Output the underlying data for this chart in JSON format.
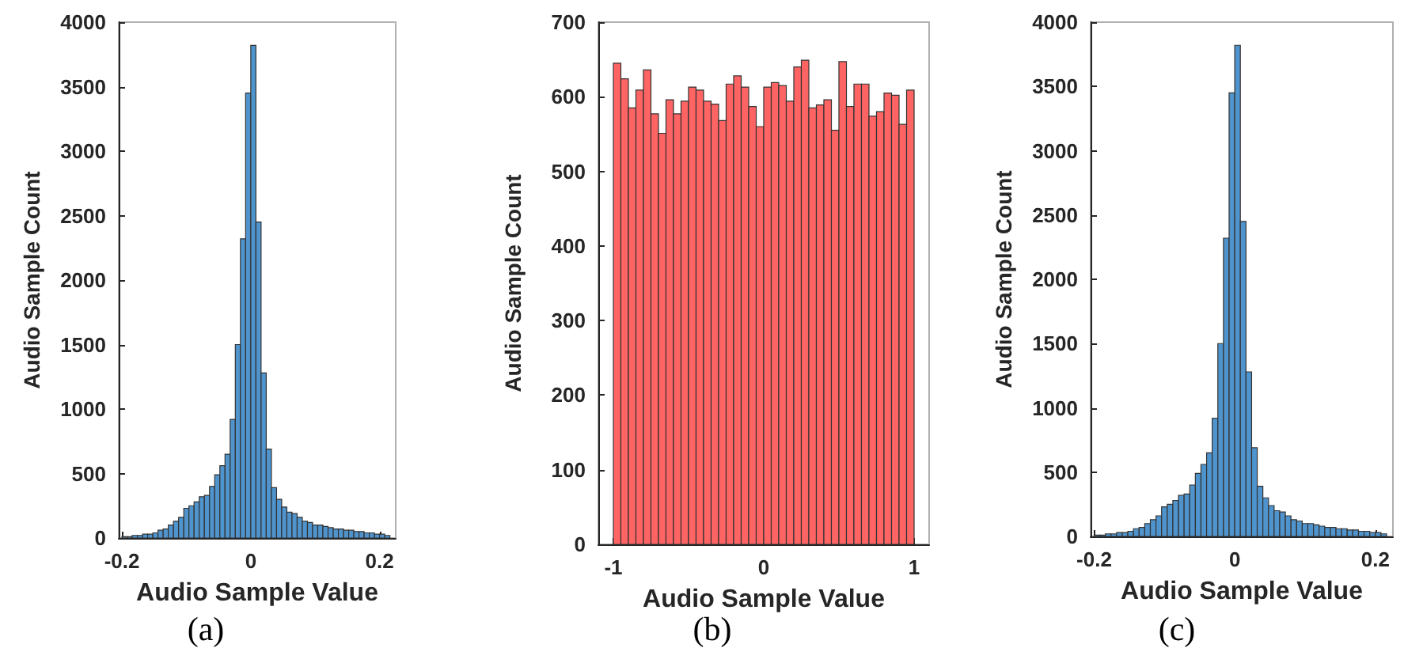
{
  "chart_data": [
    {
      "type": "histogram",
      "title": "(a)",
      "xlabel": "Audio Sample Value",
      "ylabel": "Audio Sample Count",
      "color": "#4f94cd",
      "grid": false,
      "bins": [
        -0.2,
        -0.192,
        -0.184,
        -0.176,
        -0.168,
        -0.16,
        -0.152,
        -0.144,
        -0.136,
        -0.128,
        -0.12,
        -0.112,
        -0.104,
        -0.096,
        -0.088,
        -0.08,
        -0.072,
        -0.064,
        -0.056,
        -0.048,
        -0.04,
        -0.032,
        -0.024,
        -0.016,
        -0.008,
        0,
        0.008,
        0.016,
        0.024,
        0.032,
        0.04,
        0.048,
        0.056,
        0.064,
        0.072,
        0.08,
        0.088,
        0.096,
        0.104,
        0.112,
        0.12,
        0.128,
        0.136,
        0.144,
        0.152,
        0.16,
        0.168,
        0.176,
        0.184,
        0.192,
        0.2,
        0.208,
        0.216
      ],
      "values": [
        10,
        10,
        20,
        20,
        30,
        30,
        40,
        60,
        70,
        100,
        130,
        160,
        230,
        250,
        280,
        320,
        330,
        400,
        490,
        560,
        650,
        920,
        1500,
        2320,
        3450,
        3820,
        2450,
        1280,
        690,
        390,
        300,
        240,
        200,
        190,
        160,
        130,
        120,
        100,
        100,
        90,
        80,
        70,
        70,
        60,
        60,
        50,
        50,
        40,
        40,
        30,
        30,
        20
      ],
      "xlim": [
        -0.205,
        0.225
      ],
      "xticks": [
        -0.2,
        0,
        0.2
      ],
      "ylim": [
        0,
        4000
      ],
      "yticks": [
        0,
        500,
        1000,
        1500,
        2000,
        2500,
        3000,
        3500,
        4000
      ]
    },
    {
      "type": "histogram",
      "title": "(b)",
      "xlabel": "Audio Sample Value",
      "ylabel": "Audio Sample Count",
      "color": "#ff6464",
      "grid": false,
      "bins": [
        -1,
        -0.95,
        -0.9,
        -0.85,
        -0.8,
        -0.75,
        -0.7,
        -0.65,
        -0.6,
        -0.55,
        -0.5,
        -0.45,
        -0.4,
        -0.35,
        -0.3,
        -0.25,
        -0.2,
        -0.15,
        -0.1,
        -0.05,
        0,
        0.05,
        0.1,
        0.15,
        0.2,
        0.25,
        0.3,
        0.35,
        0.4,
        0.45,
        0.5,
        0.55,
        0.6,
        0.65,
        0.7,
        0.75,
        0.8,
        0.85,
        0.9,
        0.95,
        1
      ],
      "values": [
        645,
        624,
        585,
        609,
        636,
        577,
        551,
        596,
        577,
        594,
        613,
        609,
        594,
        590,
        568,
        617,
        628,
        613,
        587,
        560,
        613,
        619,
        615,
        594,
        640,
        649,
        585,
        589,
        596,
        555,
        647,
        587,
        617,
        617,
        574,
        580,
        605,
        602,
        563,
        609
      ],
      "xlim": [
        -1.1,
        1.1
      ],
      "xticks": [
        -1,
        0,
        1
      ],
      "ylim": [
        0,
        700
      ],
      "yticks": [
        0,
        100,
        200,
        300,
        400,
        500,
        600,
        700
      ]
    },
    {
      "type": "histogram",
      "title": "(c)",
      "xlabel": "Audio Sample Value",
      "ylabel": "Audio Sample Count",
      "color": "#4f94cd",
      "grid": false,
      "bins": [
        -0.2,
        -0.192,
        -0.184,
        -0.176,
        -0.168,
        -0.16,
        -0.152,
        -0.144,
        -0.136,
        -0.128,
        -0.12,
        -0.112,
        -0.104,
        -0.096,
        -0.088,
        -0.08,
        -0.072,
        -0.064,
        -0.056,
        -0.048,
        -0.04,
        -0.032,
        -0.024,
        -0.016,
        -0.008,
        0,
        0.008,
        0.016,
        0.024,
        0.032,
        0.04,
        0.048,
        0.056,
        0.064,
        0.072,
        0.08,
        0.088,
        0.096,
        0.104,
        0.112,
        0.12,
        0.128,
        0.136,
        0.144,
        0.152,
        0.16,
        0.168,
        0.176,
        0.184,
        0.192,
        0.2,
        0.208,
        0.216
      ],
      "values": [
        10,
        10,
        20,
        20,
        30,
        30,
        40,
        60,
        70,
        100,
        130,
        160,
        230,
        250,
        280,
        320,
        330,
        400,
        490,
        560,
        650,
        920,
        1500,
        2320,
        3450,
        3820,
        2450,
        1280,
        690,
        390,
        300,
        240,
        200,
        190,
        160,
        130,
        120,
        100,
        100,
        90,
        80,
        70,
        70,
        60,
        60,
        50,
        50,
        40,
        40,
        30,
        30,
        20
      ],
      "xlim": [
        -0.205,
        0.225
      ],
      "xticks": [
        -0.2,
        0,
        0.2
      ],
      "ylim": [
        0,
        4000
      ],
      "yticks": [
        0,
        500,
        1000,
        1500,
        2000,
        2500,
        3000,
        3500,
        4000
      ]
    }
  ]
}
